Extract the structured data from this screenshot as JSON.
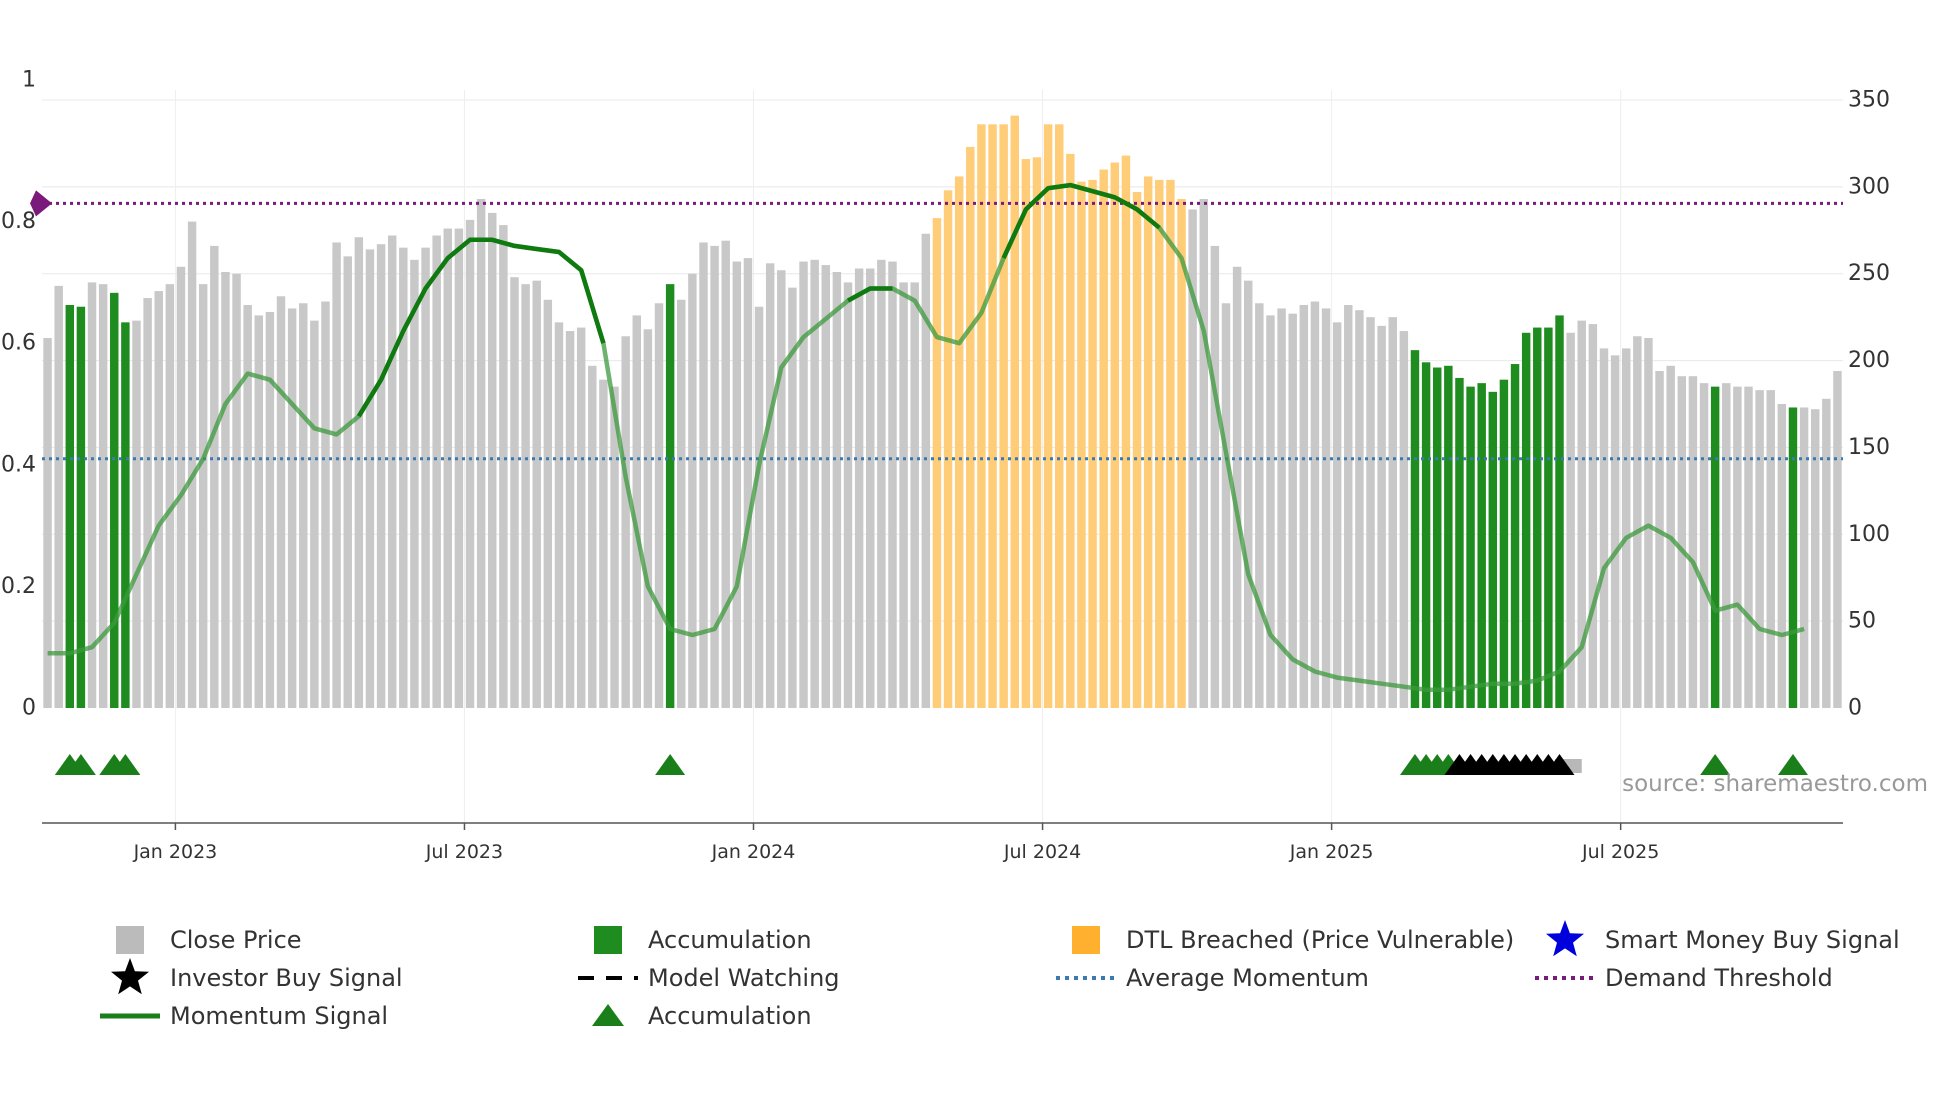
{
  "chart_data": {
    "type": "bar",
    "title": "",
    "source": "source: sharemaestro.com",
    "left_axis": {
      "ylim": [
        0,
        1
      ],
      "ticks": [
        0,
        0.2,
        0.4,
        0.6,
        0.8,
        1
      ],
      "tick_labels": [
        "0",
        "0.2",
        "0.4",
        "0.6",
        "0.8",
        "1"
      ]
    },
    "right_axis": {
      "ylim": [
        0,
        350
      ],
      "ticks": [
        0,
        50,
        100,
        150,
        200,
        250,
        300,
        350
      ],
      "tick_labels": [
        "0",
        "50",
        "100",
        "150",
        "200",
        "250",
        "300",
        "350"
      ]
    },
    "x_ticks": [
      {
        "week": 12,
        "label": "Jan 2023"
      },
      {
        "week": 38,
        "label": "Jul 2023"
      },
      {
        "week": 64,
        "label": "Jan 2024"
      },
      {
        "week": 90,
        "label": "Jul 2024"
      },
      {
        "week": 116,
        "label": "Jan 2025"
      },
      {
        "week": 142,
        "label": "Jul 2025"
      }
    ],
    "close_price": [
      213,
      243,
      232,
      231,
      245,
      244,
      239,
      222,
      223,
      236,
      240,
      244,
      254,
      280,
      244,
      266,
      251,
      250,
      232,
      226,
      228,
      237,
      230,
      233,
      223,
      234,
      268,
      260,
      271,
      264,
      267,
      272,
      265,
      258,
      265,
      272,
      276,
      276,
      281,
      293,
      285,
      278,
      248,
      244,
      246,
      235,
      222,
      217,
      219,
      197,
      189,
      185,
      214,
      226,
      218,
      233,
      244,
      235,
      250,
      268,
      266,
      269,
      257,
      259,
      231,
      256,
      252,
      242,
      257,
      258,
      255,
      251,
      245,
      253,
      253,
      258,
      257,
      245,
      245,
      273,
      282,
      298,
      306,
      323,
      336,
      336,
      336,
      341,
      316,
      317,
      336,
      336,
      319,
      303,
      304,
      310,
      314,
      318,
      297,
      306,
      304,
      304,
      293,
      287,
      293,
      266,
      233,
      254,
      246,
      233,
      226,
      230,
      227,
      232,
      234,
      230,
      222,
      232,
      229,
      225,
      220,
      225,
      217,
      206,
      199,
      196,
      197,
      190,
      185,
      187,
      182,
      189,
      198,
      216,
      219,
      219,
      226,
      216,
      223,
      221,
      207,
      203,
      207,
      214,
      213,
      194,
      197,
      191,
      191,
      187,
      185,
      187,
      185,
      185,
      183,
      183,
      175,
      173,
      173,
      172,
      178,
      194
    ],
    "categories": [
      {
        "name": "accumulation",
        "ranges": [
          [
            2,
            3
          ],
          [
            6,
            7
          ],
          [
            56,
            56
          ],
          [
            123,
            136
          ],
          [
            150,
            150
          ],
          [
            157,
            157
          ]
        ]
      },
      {
        "name": "dtl_breached",
        "ranges": [
          [
            80,
            98
          ],
          [
            99,
            102
          ]
        ]
      }
    ],
    "momentum_signal": [
      [
        0,
        0.09
      ],
      [
        2,
        0.09
      ],
      [
        4,
        0.1
      ],
      [
        6,
        0.14
      ],
      [
        8,
        0.22
      ],
      [
        10,
        0.3
      ],
      [
        12,
        0.35
      ],
      [
        14,
        0.41
      ],
      [
        16,
        0.5
      ],
      [
        18,
        0.55
      ],
      [
        20,
        0.54
      ],
      [
        22,
        0.5
      ],
      [
        24,
        0.46
      ],
      [
        26,
        0.45
      ],
      [
        28,
        0.48
      ],
      [
        30,
        0.54
      ],
      [
        32,
        0.62
      ],
      [
        34,
        0.69
      ],
      [
        36,
        0.74
      ],
      [
        38,
        0.77
      ],
      [
        40,
        0.77
      ],
      [
        42,
        0.76
      ],
      [
        44,
        0.755
      ],
      [
        46,
        0.75
      ],
      [
        48,
        0.72
      ],
      [
        50,
        0.6
      ],
      [
        52,
        0.38
      ],
      [
        54,
        0.2
      ],
      [
        56,
        0.13
      ],
      [
        58,
        0.12
      ],
      [
        60,
        0.13
      ],
      [
        62,
        0.2
      ],
      [
        64,
        0.4
      ],
      [
        66,
        0.56
      ],
      [
        68,
        0.61
      ],
      [
        70,
        0.64
      ],
      [
        72,
        0.67
      ],
      [
        74,
        0.69
      ],
      [
        76,
        0.69
      ],
      [
        78,
        0.67
      ],
      [
        80,
        0.61
      ],
      [
        82,
        0.6
      ],
      [
        84,
        0.65
      ],
      [
        86,
        0.74
      ],
      [
        88,
        0.82
      ],
      [
        90,
        0.855
      ],
      [
        92,
        0.86
      ],
      [
        94,
        0.85
      ],
      [
        96,
        0.84
      ],
      [
        98,
        0.82
      ],
      [
        100,
        0.79
      ],
      [
        102,
        0.74
      ],
      [
        104,
        0.62
      ],
      [
        106,
        0.42
      ],
      [
        108,
        0.22
      ],
      [
        110,
        0.12
      ],
      [
        112,
        0.08
      ],
      [
        114,
        0.06
      ],
      [
        116,
        0.05
      ],
      [
        118,
        0.045
      ],
      [
        120,
        0.04
      ],
      [
        122,
        0.035
      ],
      [
        124,
        0.03
      ],
      [
        126,
        0.03
      ],
      [
        128,
        0.035
      ],
      [
        130,
        0.04
      ],
      [
        132,
        0.04
      ],
      [
        134,
        0.045
      ],
      [
        136,
        0.06
      ],
      [
        138,
        0.1
      ],
      [
        140,
        0.23
      ],
      [
        142,
        0.28
      ],
      [
        144,
        0.3
      ],
      [
        146,
        0.28
      ],
      [
        148,
        0.24
      ],
      [
        150,
        0.16
      ],
      [
        152,
        0.17
      ],
      [
        154,
        0.13
      ],
      [
        156,
        0.12
      ],
      [
        158,
        0.13
      ]
    ],
    "momentum_dark_segments": [
      [
        28,
        50
      ],
      [
        72,
        76
      ],
      [
        86,
        100
      ]
    ],
    "average_momentum": 0.41,
    "demand_threshold": 0.83,
    "accumulation_triangles": [
      2,
      3,
      6,
      7,
      56,
      123,
      124,
      125,
      126,
      150,
      157
    ],
    "investor_buy_signals": [
      127,
      128,
      129,
      130,
      131,
      132,
      133,
      134,
      135,
      136
    ],
    "model_watching_range": [
      136,
      139
    ],
    "legend": [
      {
        "label": "Close Price",
        "marker": "square",
        "color": "#bbbbbb"
      },
      {
        "label": "Accumulation",
        "marker": "square",
        "color": "#1e8c1e"
      },
      {
        "label": "DTL Breached (Price Vulnerable)",
        "marker": "square",
        "color": "#ffb02e"
      },
      {
        "label": "Smart Money Buy Signal",
        "marker": "star",
        "color": "#0000dd"
      },
      {
        "label": "Investor Buy Signal",
        "marker": "star",
        "color": "#000000"
      },
      {
        "label": "Model Watching",
        "marker": "dash",
        "color": "#000000"
      },
      {
        "label": "Average Momentum",
        "marker": "dot",
        "color": "#3a7ab0"
      },
      {
        "label": "Demand Threshold",
        "marker": "dot",
        "color": "#7a1a7a"
      },
      {
        "label": "Momentum Signal",
        "marker": "line",
        "color": "#1a7f1a"
      },
      {
        "label": "Accumulation",
        "marker": "triangle",
        "color": "#1a7f1a"
      }
    ]
  }
}
